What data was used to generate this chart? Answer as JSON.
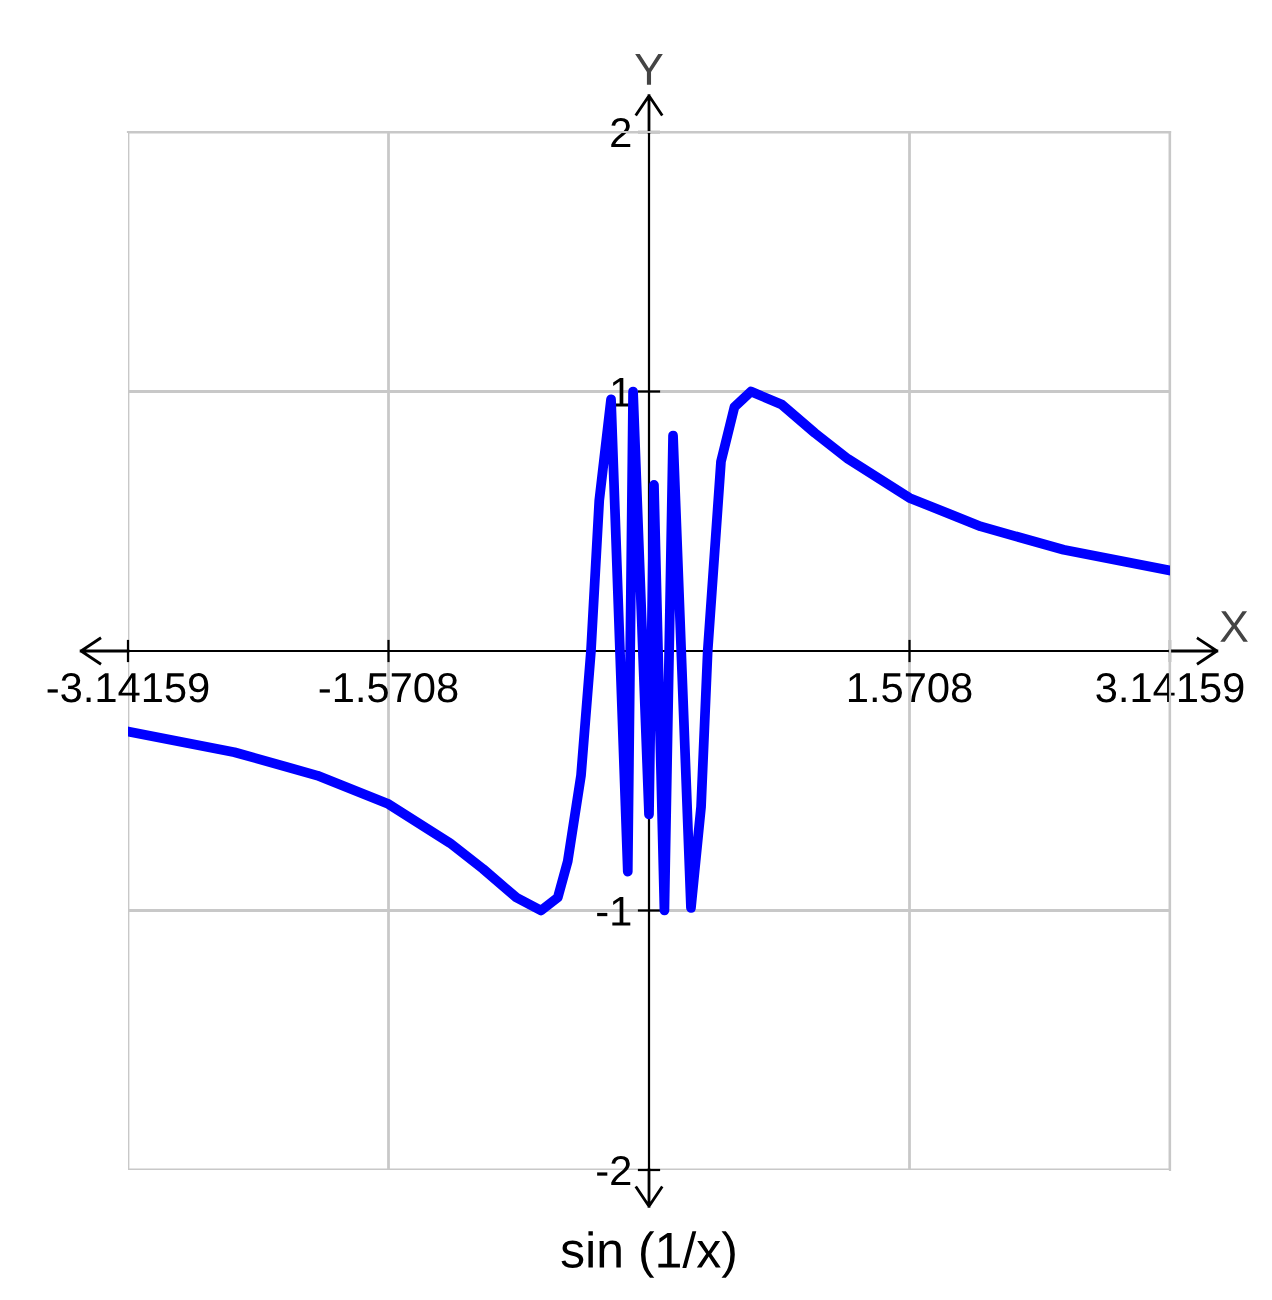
{
  "chart_data": {
    "type": "line",
    "title": "sin (1/x)",
    "xlabel": "X",
    "ylabel": "Y",
    "x": [
      -3.14159,
      -2.5,
      -2,
      -1.5708,
      -1.2,
      -1,
      -0.8,
      -0.651,
      -0.55,
      -0.49,
      -0.41,
      -0.35,
      -0.3,
      -0.229,
      -0.128,
      -0.096,
      0.0,
      0.03,
      0.093,
      0.145,
      0.253,
      0.314,
      0.354,
      0.434,
      0.515,
      0.615,
      0.8,
      1,
      1.2,
      1.5708,
      2,
      2.5,
      3.14159
    ],
    "series": [
      {
        "color": "#0000ff",
        "values": [
          -0.31,
          -0.39,
          -0.48,
          -0.59,
          -0.74,
          -0.84,
          -0.95,
          -1,
          -0.95,
          -0.81,
          -0.48,
          0,
          0.58,
          0.97,
          -0.85,
          1,
          -0.63,
          0.64,
          -1,
          0.83,
          -0.99,
          -0.6,
          0,
          0.73,
          0.94,
          1,
          0.95,
          0.84,
          0.74,
          0.59,
          0.48,
          0.39,
          0.31
        ]
      }
    ],
    "xlim": [
      -3.14159,
      3.14159
    ],
    "ylim": [
      -2,
      2
    ],
    "xticks": [
      -3.14159,
      -1.5708,
      1.5708,
      3.14159
    ],
    "yticks": [
      -2,
      -1,
      1,
      2
    ],
    "grid": true,
    "marker": "none",
    "line_style": "solid"
  }
}
